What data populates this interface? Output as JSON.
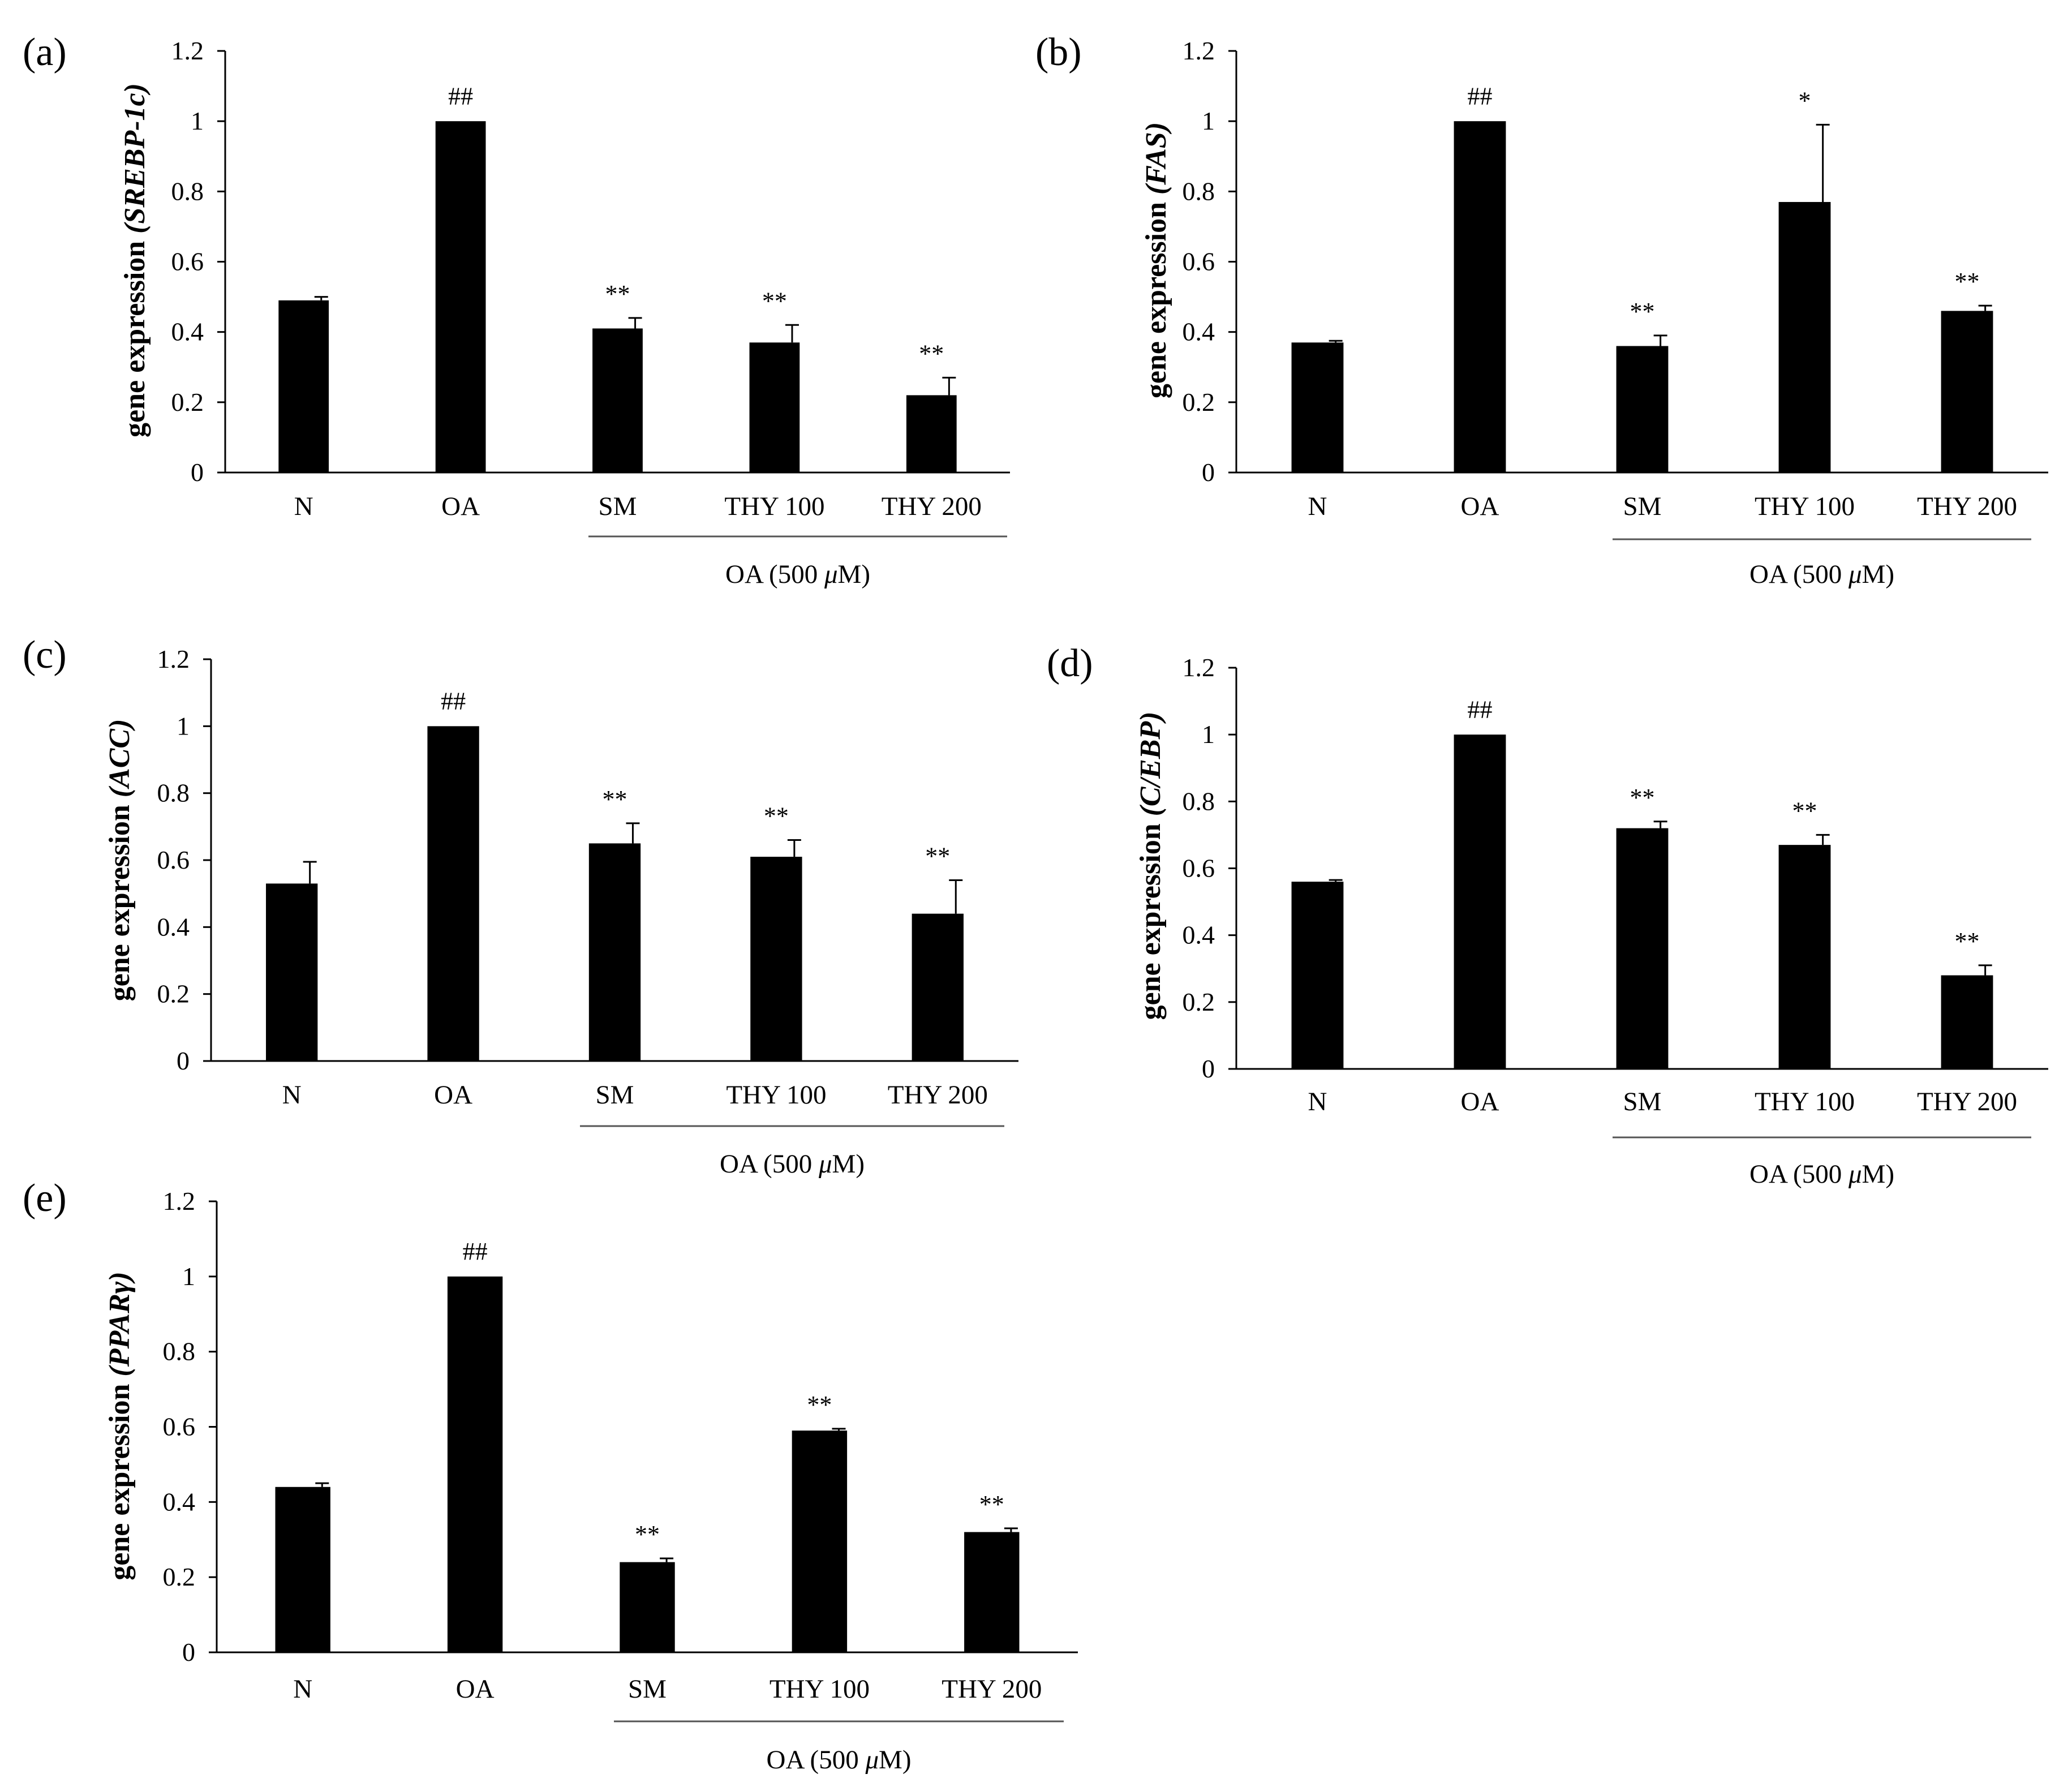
{
  "figure": {
    "group_label_prefix": "OA (500 ",
    "group_label_unit_mu": "μ",
    "group_label_unit_rest": "M)"
  },
  "chart_data": [
    {
      "type": "bar",
      "panel_label": "(a)",
      "ylabel_prefix": "gene expression ",
      "ylabel_gene": "(SREBP-1c)",
      "categories": [
        "N",
        "OA",
        "SM",
        "THY 100",
        "THY 200"
      ],
      "values": [
        0.49,
        1.0,
        0.41,
        0.37,
        0.22
      ],
      "errors": [
        0.01,
        0.003,
        0.03,
        0.05,
        0.05
      ],
      "significance": [
        "",
        "##",
        "**",
        "**",
        "**"
      ],
      "yticks": [
        "0",
        "0.2",
        "0.4",
        "0.6",
        "0.8",
        "1",
        "1.2"
      ],
      "ylim": [
        0,
        1.2
      ],
      "bar_color": "#000000"
    },
    {
      "type": "bar",
      "panel_label": "(b)",
      "ylabel_prefix": "gene expression ",
      "ylabel_gene": "(FAS)",
      "categories": [
        "N",
        "OA",
        "SM",
        "THY 100",
        "THY 200"
      ],
      "values": [
        0.37,
        1.0,
        0.36,
        0.77,
        0.46
      ],
      "errors": [
        0.005,
        0.003,
        0.03,
        0.22,
        0.015
      ],
      "significance": [
        "",
        "##",
        "**",
        "*",
        "**"
      ],
      "yticks": [
        "0",
        "0.2",
        "0.4",
        "0.6",
        "0.8",
        "1",
        "1.2"
      ],
      "ylim": [
        0,
        1.2
      ],
      "bar_color": "#000000"
    },
    {
      "type": "bar",
      "panel_label": "(c)",
      "ylabel_prefix": "gene expression ",
      "ylabel_gene": "(ACC)",
      "categories": [
        "N",
        "OA",
        "SM",
        "THY 100",
        "THY 200"
      ],
      "values": [
        0.53,
        1.0,
        0.65,
        0.61,
        0.44
      ],
      "errors": [
        0.065,
        0.003,
        0.06,
        0.05,
        0.1
      ],
      "significance": [
        "",
        "##",
        "**",
        "**",
        "**"
      ],
      "yticks": [
        "0",
        "0.2",
        "0.4",
        "0.6",
        "0.8",
        "1",
        "1.2"
      ],
      "ylim": [
        0,
        1.2
      ],
      "bar_color": "#000000"
    },
    {
      "type": "bar",
      "panel_label": "(d)",
      "ylabel_prefix": "gene expression ",
      "ylabel_gene": "(C/EBP)",
      "categories": [
        "N",
        "OA",
        "SM",
        "THY 100",
        "THY 200"
      ],
      "values": [
        0.56,
        1.0,
        0.72,
        0.67,
        0.28
      ],
      "errors": [
        0.005,
        0.003,
        0.02,
        0.03,
        0.03
      ],
      "significance": [
        "",
        "##",
        "**",
        "**",
        "**"
      ],
      "yticks": [
        "0",
        "0.2",
        "0.4",
        "0.6",
        "0.8",
        "1",
        "1.2"
      ],
      "ylim": [
        0,
        1.2
      ],
      "bar_color": "#000000"
    },
    {
      "type": "bar",
      "panel_label": "(e)",
      "ylabel_prefix": "gene expression ",
      "ylabel_gene": "(PPARγ)",
      "categories": [
        "N",
        "OA",
        "SM",
        "THY 100",
        "THY 200"
      ],
      "values": [
        0.44,
        1.0,
        0.24,
        0.59,
        0.32
      ],
      "errors": [
        0.01,
        0.003,
        0.01,
        0.005,
        0.01
      ],
      "significance": [
        "",
        "##",
        "**",
        "**",
        "**"
      ],
      "yticks": [
        "0",
        "0.2",
        "0.4",
        "0.6",
        "0.8",
        "1",
        "1.2"
      ],
      "ylim": [
        0,
        1.2
      ],
      "bar_color": "#000000"
    }
  ]
}
